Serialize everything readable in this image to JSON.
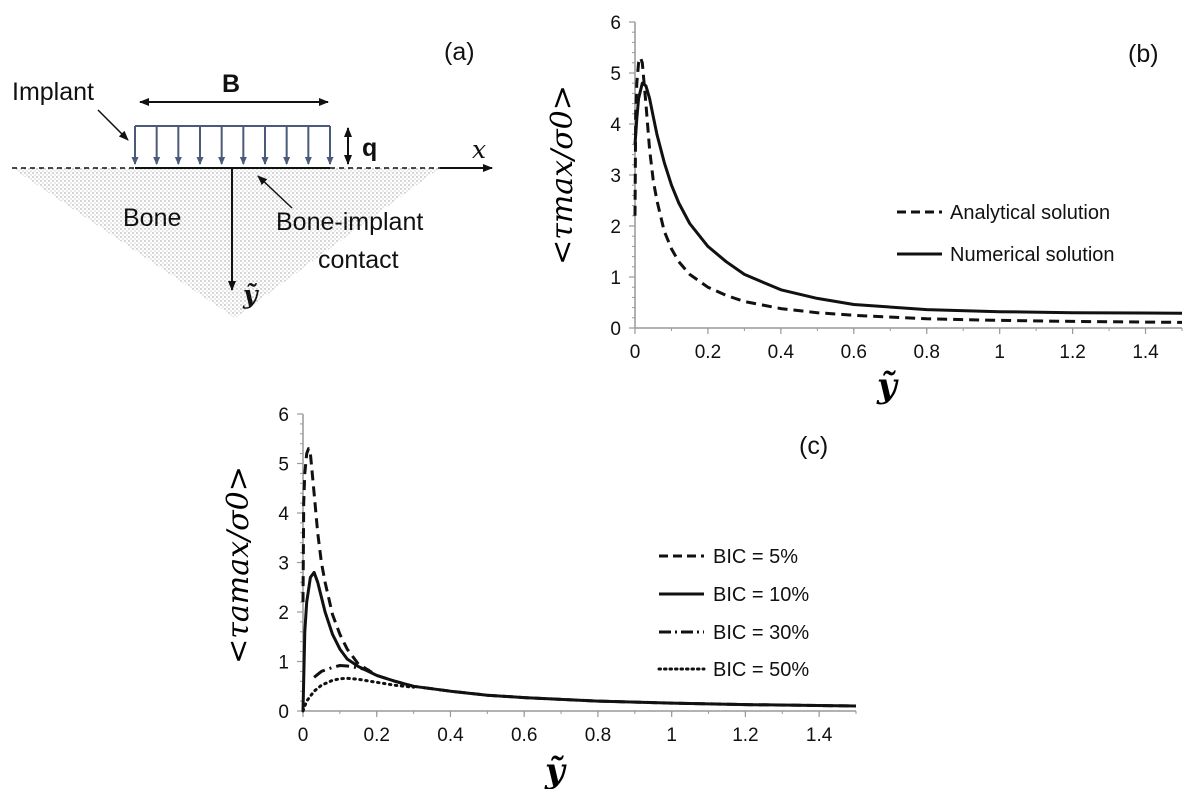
{
  "panel_a": {
    "label": "(a)",
    "b": "B",
    "implant": "Implant",
    "q": "q",
    "x": "x",
    "bone": "Bone",
    "contact1": "Bone-implant",
    "contact2": "contact",
    "y": "ỹ"
  },
  "chart_data": [
    {
      "type": "line",
      "panel": "(b)",
      "xlabel": "ỹ",
      "ylabel": "<τmax/σ0>",
      "xlim": [
        0,
        1.5
      ],
      "ylim": [
        0,
        6
      ],
      "xticks": [
        "0",
        "0.2",
        "0.4",
        "0.6",
        "0.8",
        "1",
        "1.2",
        "1.4"
      ],
      "yticks": [
        "0",
        "1",
        "2",
        "3",
        "4",
        "5",
        "6"
      ],
      "legend_position": "right",
      "series": [
        {
          "name": "Analytical solution",
          "style": "dashed",
          "x": [
            0.0,
            0.002,
            0.005,
            0.01,
            0.015,
            0.02,
            0.03,
            0.04,
            0.05,
            0.06,
            0.08,
            0.1,
            0.12,
            0.15,
            0.2,
            0.25,
            0.3,
            0.4,
            0.5,
            0.6,
            0.8,
            1.0,
            1.2,
            1.5
          ],
          "values": [
            2.2,
            4.2,
            4.8,
            5.2,
            5.3,
            5.2,
            4.4,
            3.5,
            2.9,
            2.5,
            1.9,
            1.55,
            1.3,
            1.05,
            0.8,
            0.64,
            0.52,
            0.38,
            0.3,
            0.25,
            0.18,
            0.15,
            0.13,
            0.11
          ]
        },
        {
          "name": "Numerical solution",
          "style": "solid",
          "x": [
            0.0,
            0.005,
            0.01,
            0.02,
            0.03,
            0.04,
            0.05,
            0.06,
            0.08,
            0.1,
            0.12,
            0.15,
            0.2,
            0.25,
            0.3,
            0.4,
            0.5,
            0.6,
            0.8,
            1.0,
            1.2,
            1.5
          ],
          "values": [
            3.6,
            4.1,
            4.5,
            4.8,
            4.75,
            4.5,
            4.15,
            3.8,
            3.25,
            2.8,
            2.45,
            2.05,
            1.6,
            1.3,
            1.05,
            0.75,
            0.58,
            0.46,
            0.36,
            0.32,
            0.3,
            0.29
          ]
        }
      ]
    },
    {
      "type": "line",
      "panel": "(c)",
      "xlabel": "ỹ",
      "ylabel": "<τamax/σ0>",
      "xlim": [
        0,
        1.5
      ],
      "ylim": [
        0,
        6
      ],
      "xticks": [
        "0",
        "0.2",
        "0.4",
        "0.6",
        "0.8",
        "1",
        "1.2",
        "1.4"
      ],
      "yticks": [
        "0",
        "1",
        "2",
        "3",
        "4",
        "5",
        "6"
      ],
      "legend_position": "right",
      "series": [
        {
          "name": "BIC = 5%",
          "style": "dashed",
          "x": [
            0.0,
            0.002,
            0.005,
            0.01,
            0.015,
            0.02,
            0.03,
            0.04,
            0.05,
            0.06,
            0.08,
            0.1,
            0.12,
            0.15,
            0.2,
            0.25,
            0.3,
            0.4,
            0.5,
            0.6,
            0.8,
            1.0,
            1.2,
            1.5
          ],
          "values": [
            2.2,
            4.2,
            4.8,
            5.2,
            5.3,
            5.2,
            4.4,
            3.6,
            3.0,
            2.6,
            1.95,
            1.55,
            1.25,
            0.95,
            0.72,
            0.6,
            0.5,
            0.4,
            0.32,
            0.27,
            0.2,
            0.16,
            0.13,
            0.1
          ]
        },
        {
          "name": "BIC = 10%",
          "style": "solid",
          "x": [
            0.0,
            0.005,
            0.01,
            0.02,
            0.03,
            0.04,
            0.05,
            0.06,
            0.08,
            0.1,
            0.12,
            0.15,
            0.2,
            0.25,
            0.3,
            0.4,
            0.5,
            0.6,
            0.8,
            1.0,
            1.2,
            1.5
          ],
          "values": [
            0.0,
            1.6,
            2.2,
            2.7,
            2.8,
            2.6,
            2.3,
            2.0,
            1.55,
            1.25,
            1.05,
            0.9,
            0.72,
            0.6,
            0.5,
            0.4,
            0.32,
            0.27,
            0.2,
            0.16,
            0.13,
            0.1
          ]
        },
        {
          "name": "BIC = 30%",
          "style": "dashdot",
          "x": [
            0.03,
            0.05,
            0.08,
            0.1,
            0.12,
            0.15,
            0.18
          ],
          "values": [
            0.68,
            0.8,
            0.88,
            0.92,
            0.91,
            0.87,
            0.82
          ]
        },
        {
          "name": "BIC = 50%",
          "style": "dotted",
          "x": [
            0.0,
            0.01,
            0.03,
            0.05,
            0.08,
            0.1,
            0.12,
            0.15,
            0.2,
            0.25,
            0.3
          ],
          "values": [
            0.0,
            0.2,
            0.4,
            0.52,
            0.62,
            0.65,
            0.66,
            0.64,
            0.58,
            0.52,
            0.48
          ]
        }
      ]
    }
  ]
}
